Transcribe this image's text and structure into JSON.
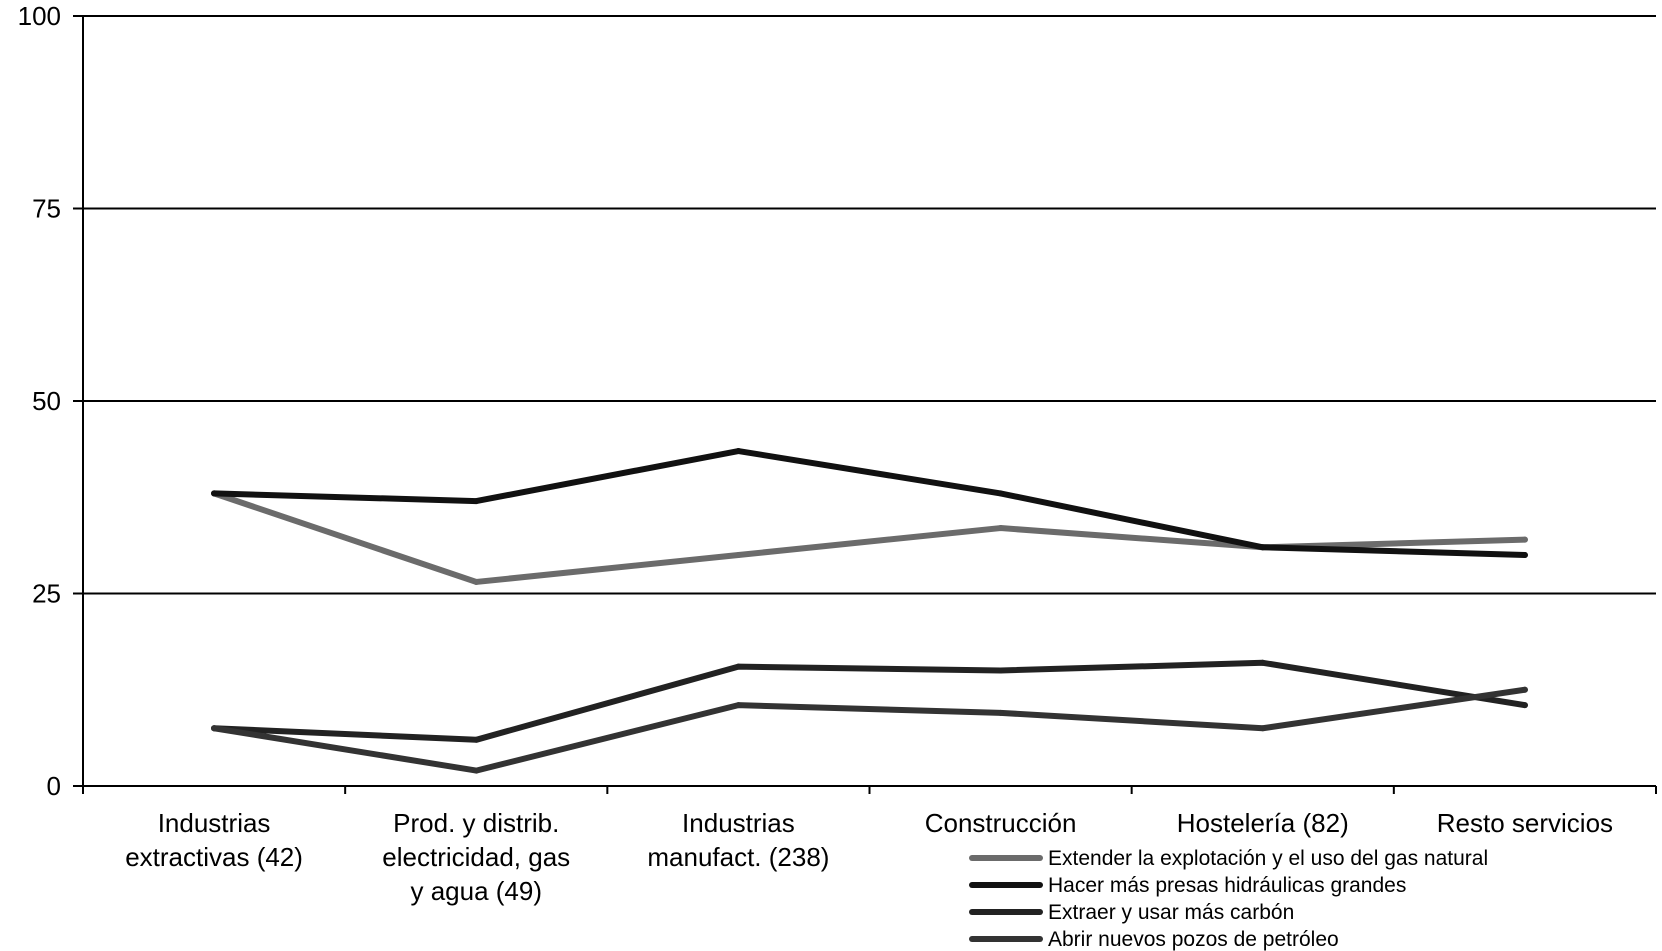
{
  "chart_data": {
    "type": "line",
    "title": "",
    "xlabel": "",
    "ylabel": "",
    "ylim": [
      0,
      100
    ],
    "yticks": [
      "0",
      "25",
      "50",
      "75",
      "100"
    ],
    "grid": true,
    "legend_position": "bottom-right",
    "categories": [
      [
        "Industrias",
        "extractivas (42)"
      ],
      [
        "Prod. y distrib.",
        "electricidad, gas",
        "y agua (49)"
      ],
      [
        "Industrias",
        "manufact. (238)"
      ],
      [
        "Construcción"
      ],
      [
        "Hostelería (82)"
      ],
      [
        "Resto servicios"
      ]
    ],
    "series": [
      {
        "name": "Extender la explotación y el uso del gas natural",
        "color": "#6b6b6b",
        "values": [
          38,
          26.5,
          30,
          33.5,
          31,
          32
        ]
      },
      {
        "name": "Hacer más presas hidráulicas grandes",
        "color": "#111111",
        "values": [
          38,
          37,
          43.5,
          38,
          31,
          30
        ]
      },
      {
        "name": "Extraer y usar más carbón",
        "color": "#222222",
        "values": [
          7.5,
          6,
          15.5,
          15,
          16,
          10.5
        ]
      },
      {
        "name": "Abrir nuevos pozos de petróleo",
        "color": "#333333",
        "values": [
          7.5,
          2,
          10.5,
          9.5,
          7.5,
          12.5
        ]
      }
    ]
  }
}
